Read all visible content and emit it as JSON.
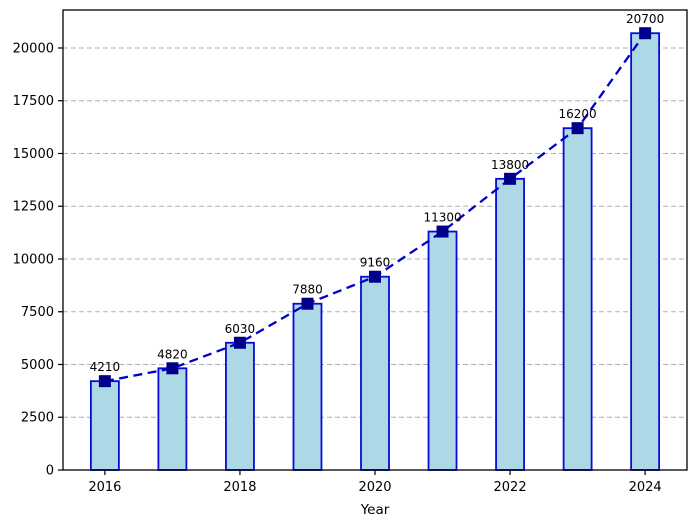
{
  "figure": {
    "background": "#ffffff"
  },
  "chart_data": {
    "type": "bar",
    "overlay": "line",
    "title": "",
    "xlabel": "Year",
    "ylabel": "",
    "categories": [
      "2016",
      "2017",
      "2018",
      "2019",
      "2020",
      "2021",
      "2022",
      "2023",
      "2024"
    ],
    "series": [
      {
        "name": "values-bars",
        "values": [
          4210,
          4820,
          6030,
          7880,
          9160,
          11300,
          13800,
          16200,
          20700
        ]
      },
      {
        "name": "values-trend-line",
        "values": [
          4210,
          4820,
          6030,
          7880,
          9160,
          11300,
          13800,
          16200,
          20700
        ]
      }
    ],
    "value_labels": [
      "4210",
      "4820",
      "6030",
      "7880",
      "9160",
      "11300",
      "13800",
      "16200",
      "20700"
    ],
    "xticks": [
      "2016",
      "2018",
      "2020",
      "2022",
      "2024"
    ],
    "yticks": [
      "0",
      "2500",
      "5000",
      "7500",
      "10000",
      "12500",
      "15000",
      "17500",
      "20000"
    ],
    "ylim": [
      0,
      21800
    ],
    "grid": {
      "axis": "y",
      "style": "dashed",
      "color": "#b0b0b0"
    },
    "legend": "none",
    "style": {
      "bar_fill": "#ADD8E6",
      "bar_edge": "#0A0AD6",
      "line_color": "#0000CD",
      "line_style": "dashed",
      "marker_shape": "square",
      "marker_color": "#00008B",
      "text_color": "#000000",
      "spine_color": "#000000"
    }
  }
}
